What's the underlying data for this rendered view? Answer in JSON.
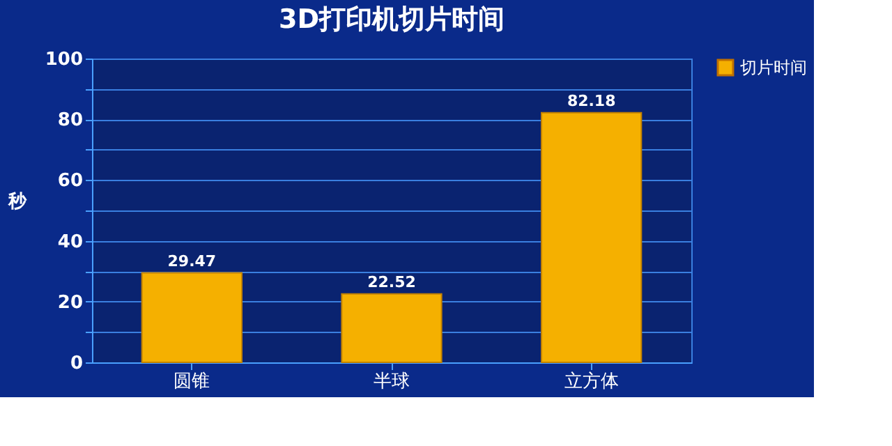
{
  "chart_data": {
    "type": "bar",
    "title": "3D打印机切片时间",
    "ylabel": "秒",
    "categories": [
      "圆锥",
      "半球",
      "立方体"
    ],
    "series": [
      {
        "name": "切片时间",
        "color": "#f5b000",
        "values": [
          29.47,
          22.52,
          82.18
        ]
      }
    ],
    "ylim": [
      0,
      100
    ],
    "yticks": [
      0,
      {
        "value": 10,
        "label": null
      },
      20,
      {
        "value": 30,
        "label": null
      },
      40,
      {
        "value": 50,
        "label": null
      },
      60,
      {
        "value": 70,
        "label": null
      },
      80,
      {
        "value": 90,
        "label": null
      },
      100
    ],
    "grid": "y",
    "legend": "right",
    "data_labels": true
  }
}
